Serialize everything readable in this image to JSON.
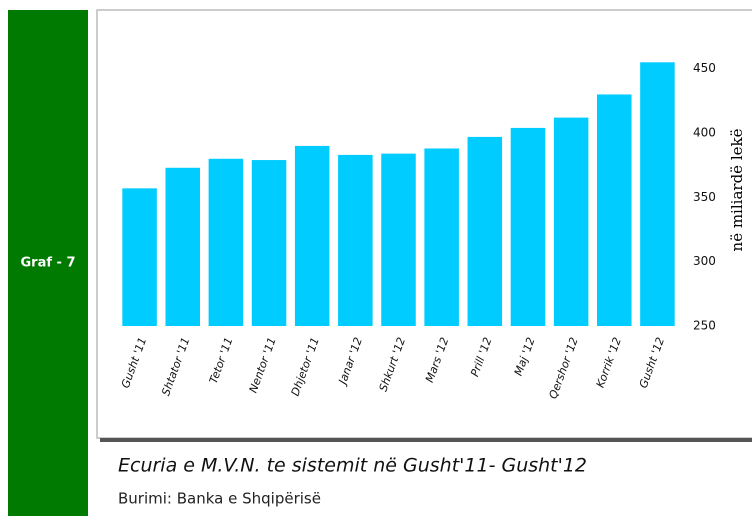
{
  "sidebar": {
    "label": "Graf - 7"
  },
  "chart_data": {
    "type": "bar",
    "title": "Ecuria e M.V.N. te sistemit në Gusht'11- Gusht'12",
    "source": "Burimi: Banka e Shqipërisë",
    "y_label": "në miliardë lekë",
    "categories": [
      "Gusht '11",
      "Shtator '11",
      "Tetor '11",
      "Nentor '11",
      "Dhjetor '11",
      "Janar '12",
      "Shkurt '12",
      "Mars '12",
      "Prill '12",
      "Maj '12",
      "Qershor '12",
      "Korrik '12",
      "Gusht '12"
    ],
    "values": [
      357,
      373,
      380,
      379,
      390,
      383,
      384,
      388,
      397,
      404,
      412,
      430,
      455
    ],
    "color": "#00ccff",
    "ylim": [
      250,
      470
    ],
    "yticks": [
      250,
      300,
      350,
      400,
      450
    ],
    "grid": false,
    "axis_side": "right"
  }
}
